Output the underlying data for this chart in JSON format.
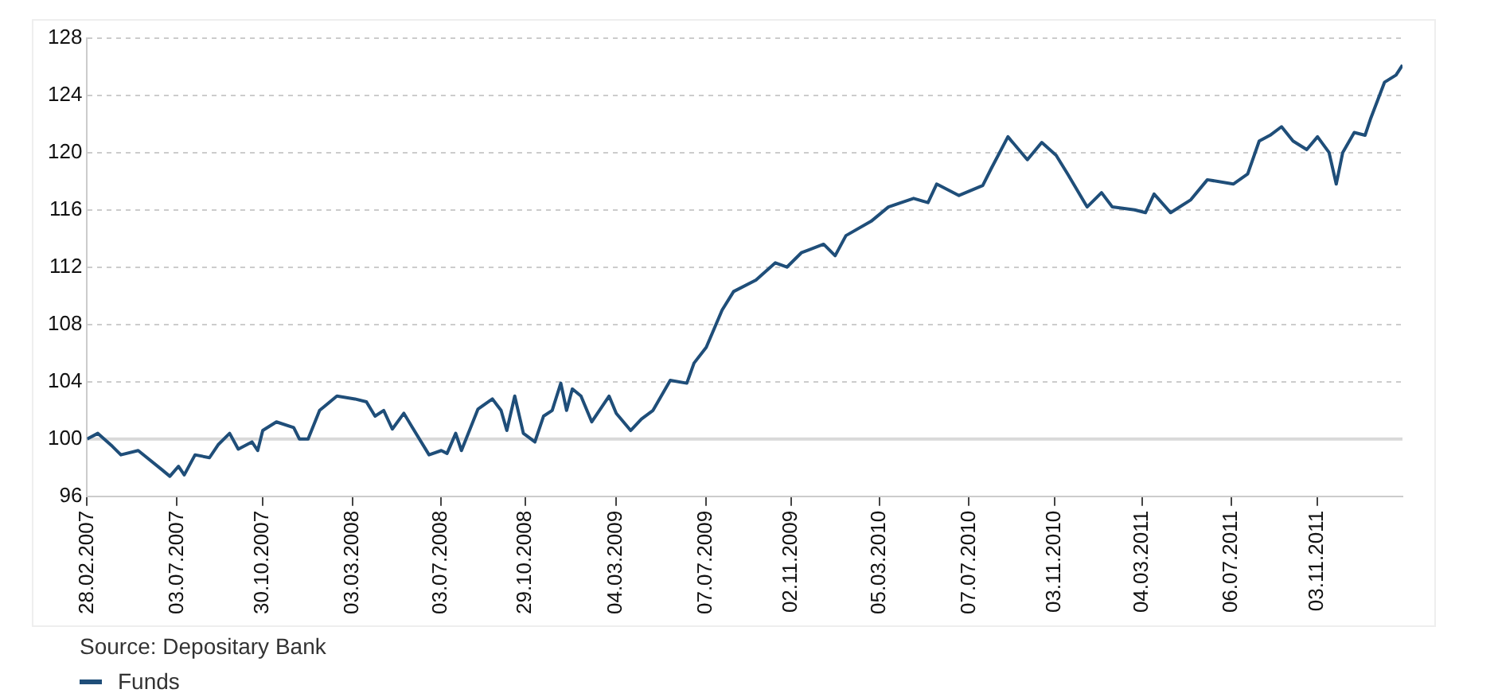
{
  "chart_data": {
    "type": "line",
    "annotations": [
      "Source: Depositary Bank"
    ],
    "x": [
      "2007-02-28",
      "2007-03-15",
      "2007-04-04",
      "2007-04-16",
      "2007-05-10",
      "2007-06-11",
      "2007-06-23",
      "2007-07-05",
      "2007-07-13",
      "2007-07-28",
      "2007-08-17",
      "2007-08-29",
      "2007-09-14",
      "2007-09-26",
      "2007-10-15",
      "2007-10-23",
      "2007-10-30",
      "2007-11-18",
      "2007-12-12",
      "2007-12-20",
      "2008-01-01",
      "2008-01-17",
      "2008-02-10",
      "2008-03-06",
      "2008-03-22",
      "2008-04-03",
      "2008-04-15",
      "2008-04-27",
      "2008-05-13",
      "2008-05-25",
      "2008-06-17",
      "2008-07-04",
      "2008-07-12",
      "2008-07-24",
      "2008-08-01",
      "2008-08-24",
      "2008-09-13",
      "2008-09-25",
      "2008-10-03",
      "2008-10-14",
      "2008-10-26",
      "2008-11-11",
      "2008-11-23",
      "2008-12-05",
      "2008-12-17",
      "2008-12-25",
      "2009-01-02",
      "2009-01-14",
      "2009-01-29",
      "2009-02-22",
      "2009-03-04",
      "2009-03-24",
      "2009-04-08",
      "2009-04-24",
      "2009-05-18",
      "2009-06-10",
      "2009-06-20",
      "2009-07-07",
      "2009-07-29",
      "2009-08-14",
      "2009-09-14",
      "2009-10-11",
      "2009-10-27",
      "2009-11-16",
      "2009-12-17",
      "2010-01-02",
      "2010-01-17",
      "2010-02-21",
      "2010-03-17",
      "2010-04-21",
      "2010-05-11",
      "2010-05-23",
      "2010-06-23",
      "2010-07-26",
      "2010-08-07",
      "2010-08-30",
      "2010-09-26",
      "2010-10-16",
      "2010-11-05",
      "2010-11-21",
      "2010-12-18",
      "2011-01-07",
      "2011-01-22",
      "2011-02-22",
      "2011-03-09",
      "2011-03-21",
      "2011-04-13",
      "2011-05-11",
      "2011-06-03",
      "2011-07-09",
      "2011-07-29",
      "2011-08-14",
      "2011-08-29",
      "2011-09-14",
      "2011-09-30",
      "2011-10-19",
      "2011-11-03",
      "2011-11-19",
      "2011-11-29",
      "2011-12-08",
      "2011-12-24",
      "2012-01-08",
      "2012-01-16",
      "2012-02-04",
      "2012-02-20",
      "2012-02-29"
    ],
    "series": [
      {
        "name": "Funds",
        "color": "#1f4e79",
        "values": [
          100,
          100.4,
          99.5,
          98.9,
          99.2,
          97.9,
          97.4,
          98.1,
          97.5,
          98.9,
          98.7,
          99.6,
          100.4,
          99.3,
          99.8,
          99.2,
          100.6,
          101.2,
          100.8,
          100,
          100,
          102,
          103,
          102.8,
          102.6,
          101.6,
          102,
          100.7,
          101.8,
          100.8,
          98.9,
          99.2,
          99,
          100.4,
          99.2,
          102.1,
          102.8,
          102,
          100.6,
          103,
          100.4,
          99.8,
          101.6,
          102,
          103.9,
          102,
          103.5,
          103,
          101.2,
          103,
          101.8,
          100.6,
          101.4,
          102,
          104.1,
          103.9,
          105.3,
          106.4,
          109,
          110.3,
          111.1,
          112.3,
          112,
          113,
          113.6,
          112.8,
          114.2,
          115.2,
          116.2,
          116.8,
          116.5,
          117.8,
          117,
          117.7,
          118.9,
          121.1,
          119.5,
          120.7,
          119.8,
          118.5,
          116.2,
          117.2,
          116.2,
          116,
          115.8,
          117.1,
          115.8,
          116.7,
          118.1,
          117.8,
          118.5,
          120.8,
          121.2,
          121.8,
          120.8,
          120.2,
          121.1,
          120,
          117.8,
          120,
          121.4,
          121.2,
          122.4,
          124.9,
          125.4,
          126.1
        ]
      }
    ],
    "xlim": [
      "2007-02-28",
      "2012-02-29"
    ],
    "xticks": [
      {
        "value": "2007-02-28",
        "label": "28.02.2007"
      },
      {
        "value": "2007-07-03",
        "label": "03.07.2007"
      },
      {
        "value": "2007-10-30",
        "label": "30.10.2007"
      },
      {
        "value": "2008-03-03",
        "label": "03.03.2008"
      },
      {
        "value": "2008-07-03",
        "label": "03.07.2008"
      },
      {
        "value": "2008-10-29",
        "label": "29.10.2008"
      },
      {
        "value": "2009-03-04",
        "label": "04.03.2009"
      },
      {
        "value": "2009-07-07",
        "label": "07.07.2009"
      },
      {
        "value": "2009-11-02",
        "label": "02.11.2009"
      },
      {
        "value": "2010-03-05",
        "label": "05.03.2010"
      },
      {
        "value": "2010-07-07",
        "label": "07.07.2010"
      },
      {
        "value": "2010-11-03",
        "label": "03.11.2010"
      },
      {
        "value": "2011-03-04",
        "label": "04.03.2011"
      },
      {
        "value": "2011-07-06",
        "label": "06.07.2011"
      },
      {
        "value": "2011-11-03",
        "label": "03.11.2011"
      }
    ],
    "ylim": [
      96,
      128
    ],
    "yticks": [
      96,
      100,
      104,
      108,
      112,
      116,
      120,
      124,
      128
    ],
    "ref_lines": [
      {
        "axis": "y",
        "value": 100,
        "color": "#d9d9d9"
      }
    ],
    "grid": "y",
    "legend": "bottom left",
    "marker": "none",
    "line_style": "solid"
  }
}
